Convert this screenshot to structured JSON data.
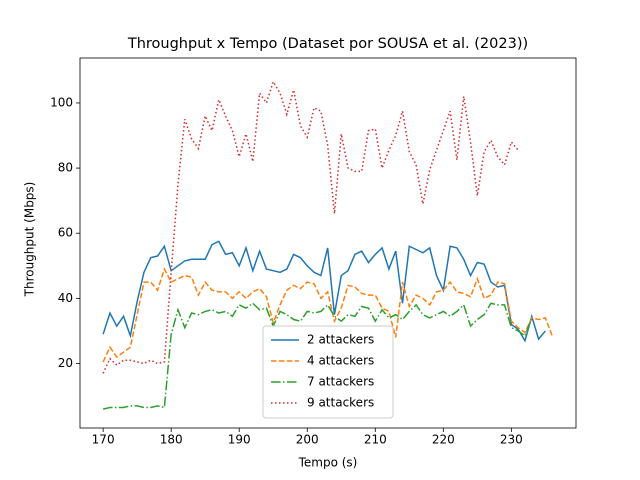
{
  "chart_data": {
    "type": "line",
    "title": "Throughput x Tempo (Dataset por SOUSA et al. (2023))",
    "xlabel": "Tempo (s)",
    "ylabel": "Throughput (Mbps)",
    "x": [
      170,
      171,
      172,
      173,
      174,
      175,
      176,
      177,
      178,
      179,
      180,
      181,
      182,
      183,
      184,
      185,
      186,
      187,
      188,
      189,
      190,
      191,
      192,
      193,
      194,
      195,
      196,
      197,
      198,
      199,
      200,
      201,
      202,
      203,
      204,
      205,
      206,
      207,
      208,
      209,
      210,
      211,
      212,
      213,
      214,
      215,
      216,
      217,
      218,
      219,
      220,
      221,
      222,
      223,
      224,
      225,
      226,
      227,
      228,
      229,
      230,
      231,
      232,
      233,
      234,
      235,
      236
    ],
    "xlim": [
      166.6,
      239.5
    ],
    "ylim": [
      0.2,
      113.8
    ],
    "xticks": [
      170,
      180,
      190,
      200,
      210,
      220,
      230
    ],
    "yticks": [
      20,
      40,
      60,
      80,
      100
    ],
    "legend": "lower center",
    "series": [
      {
        "name": "2 attackers",
        "color": "#1f77b4",
        "linestyle": "solid",
        "values": [
          29,
          35.5,
          31.5,
          34.5,
          28.5,
          39,
          48,
          52.5,
          53,
          56,
          48.5,
          50,
          51.5,
          52,
          52,
          52,
          56.5,
          57.5,
          53.5,
          54,
          50,
          55.5,
          48.5,
          54.5,
          49,
          48.5,
          48,
          49,
          53.5,
          52.5,
          50,
          48,
          47,
          55.5,
          35,
          47,
          48.5,
          53.5,
          54.5,
          51,
          53.5,
          55.5,
          49,
          54.5,
          38.5,
          56,
          55,
          54,
          55.5,
          47,
          42.5,
          56,
          55.5,
          52,
          47,
          51,
          50.5,
          45,
          43.5,
          44,
          32,
          30.5,
          27,
          34.5,
          27.5,
          30,
          null
        ]
      },
      {
        "name": "4 attackers",
        "color": "#ff7f0e",
        "linestyle": "dashed",
        "values": [
          20.5,
          25,
          22,
          23.5,
          25,
          35,
          45,
          45,
          42.5,
          49,
          45,
          46,
          47,
          46.5,
          41,
          45,
          42.5,
          42,
          42,
          40,
          42,
          40,
          42,
          43,
          40.5,
          32.5,
          38,
          42.5,
          44,
          43,
          45,
          44.5,
          40,
          42,
          33,
          37,
          44,
          43.5,
          41.5,
          41,
          41,
          37,
          36,
          28,
          45,
          37.5,
          41,
          40,
          38,
          42,
          42.5,
          45,
          42,
          41.5,
          40.5,
          46,
          40,
          41,
          45,
          44.5,
          33,
          31,
          29.5,
          34,
          33.5,
          34,
          28.5
        ]
      },
      {
        "name": "7 attackers",
        "color": "#2ca02c",
        "linestyle": "dashdot",
        "values": [
          6,
          6.5,
          6.5,
          6.5,
          7,
          7,
          6.5,
          6.5,
          7,
          6.5,
          29,
          36.5,
          31,
          35.5,
          35,
          36,
          36.5,
          35.5,
          36,
          34.5,
          38,
          37,
          38.5,
          36.5,
          37,
          31.5,
          36,
          35,
          33.5,
          33,
          36,
          35.5,
          36,
          38,
          34.5,
          33,
          35,
          34.5,
          37.5,
          37,
          33,
          36.5,
          34,
          35,
          33.5,
          36,
          38,
          35,
          34,
          35,
          36,
          34.5,
          36,
          38,
          31.5,
          33.5,
          35,
          38.5,
          38,
          38,
          31,
          30,
          28.5,
          34,
          null,
          null,
          null
        ]
      },
      {
        "name": "9 attackers",
        "color": "#d62728",
        "linestyle": "dotted",
        "values": [
          17,
          21.5,
          19.5,
          21,
          21,
          20.5,
          20,
          21,
          20,
          20.5,
          48,
          75,
          95,
          89,
          86,
          96,
          91.5,
          101,
          96,
          91.5,
          83.5,
          90.5,
          82,
          103,
          100,
          106.5,
          103,
          96.5,
          104,
          93,
          89.5,
          98.5,
          97.5,
          87,
          66,
          90.5,
          80,
          79,
          79,
          91.5,
          92,
          80,
          85.5,
          90,
          97.5,
          85,
          81,
          69,
          79.5,
          85.5,
          91.5,
          97.5,
          82.5,
          102,
          88,
          71.5,
          85,
          88.5,
          83.5,
          81,
          88,
          85.5,
          null,
          null,
          null,
          null,
          null
        ]
      }
    ]
  }
}
